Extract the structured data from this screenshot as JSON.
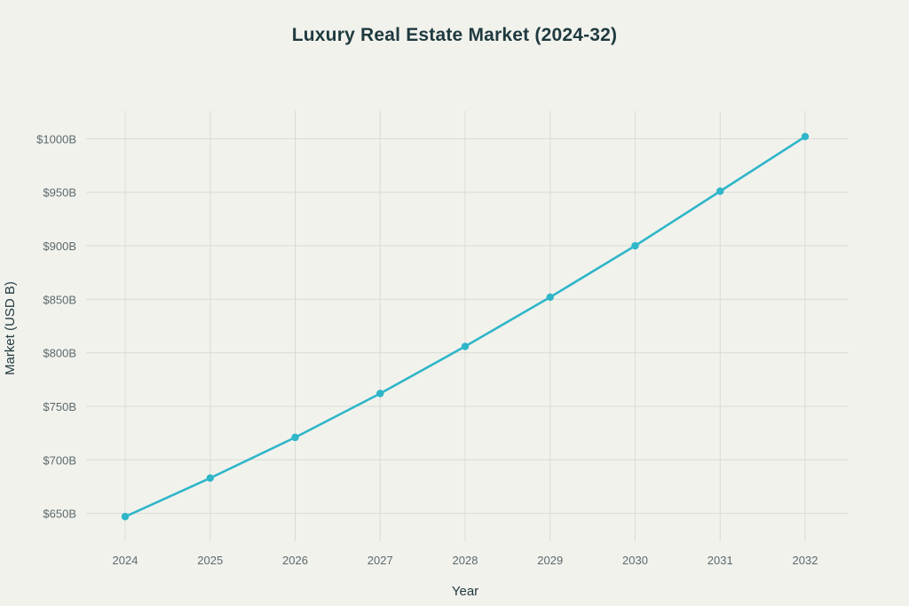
{
  "chart_data": {
    "type": "line",
    "title": "Luxury Real Estate Market (2024-32)",
    "xlabel": "Year",
    "ylabel": "Market (USD B)",
    "x": [
      "2024",
      "2025",
      "2026",
      "2027",
      "2028",
      "2029",
      "2030",
      "2031",
      "2032"
    ],
    "series": [
      {
        "values": [
          647,
          683,
          721,
          762,
          806,
          852,
          900,
          951,
          1002
        ],
        "color": "#2fb6c8"
      }
    ],
    "yticks": [
      650,
      700,
      750,
      800,
      850,
      900,
      950,
      1000
    ],
    "ytick_labels": [
      "$650B",
      "$700B",
      "$750B",
      "$800B",
      "$850B",
      "$900B",
      "$950B",
      "$1000B"
    ],
    "ylim": [
      624,
      1026
    ],
    "grid": true,
    "legend": "none",
    "colors": {
      "background": "#f2f2ed",
      "grid": "#d9dbd6",
      "line": "#2fb6c8",
      "title": "#1f3a3f",
      "tick_text": "#5c6a6c"
    }
  }
}
